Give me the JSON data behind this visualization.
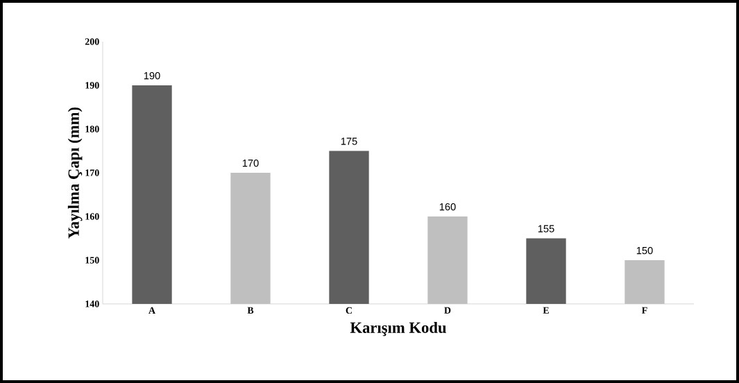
{
  "chart_data": {
    "type": "bar",
    "xlabel": "Karışım Kodu",
    "ylabel": "Yayılma Çapı (mm)",
    "categories": [
      "A",
      "B",
      "C",
      "D",
      "E",
      "F"
    ],
    "values": [
      190,
      170,
      175,
      160,
      155,
      150
    ],
    "colors": [
      "#5f5f5f",
      "#bfbfbf",
      "#5f5f5f",
      "#bfbfbf",
      "#5f5f5f",
      "#bfbfbf"
    ],
    "ylim": [
      140,
      200
    ],
    "yticks": [
      140,
      150,
      160,
      170,
      180,
      190,
      200
    ],
    "data_labels": true,
    "grid": false
  }
}
